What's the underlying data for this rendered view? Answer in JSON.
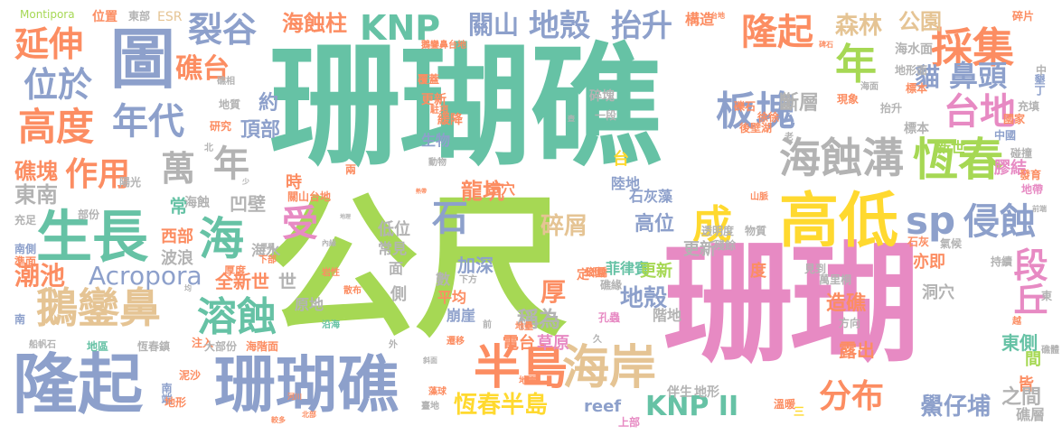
{
  "palette": {
    "green": "#66c2a5",
    "orange": "#fc8d62",
    "blue": "#8da0cb",
    "pink": "#e78ac3",
    "lime": "#a6d854",
    "yellow": "#ffd92f",
    "tan": "#e5c494",
    "gray": "#b3b3b3"
  },
  "words": [
    {
      "text": "珊瑚礁",
      "color": "#66c2a5"
    },
    {
      "text": "公尺",
      "color": "#a6d854"
    },
    {
      "text": "珊瑚",
      "color": "#e78ac3"
    },
    {
      "text": "隆起",
      "color": "#8da0cb"
    },
    {
      "text": "珊瑚礁",
      "color": "#8da0cb"
    },
    {
      "text": "圖",
      "color": "#8da0cb"
    },
    {
      "text": "生長",
      "color": "#66c2a5"
    },
    {
      "text": "高低",
      "color": "#ffd92f"
    },
    {
      "text": "海蝕溝",
      "color": "#b3b3b3"
    },
    {
      "text": "半島",
      "color": "#fc8d62"
    },
    {
      "text": "海岸",
      "color": "#e5c494"
    },
    {
      "text": "鵝鑾鼻",
      "color": "#e5c494"
    },
    {
      "text": "溶蝕",
      "color": "#66c2a5"
    },
    {
      "text": "高度",
      "color": "#fc8d62"
    },
    {
      "text": "年代",
      "color": "#8da0cb"
    },
    {
      "text": "延伸",
      "color": "#fc8d62"
    },
    {
      "text": "位於",
      "color": "#8da0cb"
    },
    {
      "text": "裂谷",
      "color": "#8da0cb"
    },
    {
      "text": "KNP",
      "color": "#66c2a5"
    },
    {
      "text": "地殼",
      "color": "#8da0cb"
    },
    {
      "text": "抬升",
      "color": "#8da0cb"
    },
    {
      "text": "隆起",
      "color": "#fc8d62"
    },
    {
      "text": "採集",
      "color": "#fc8d62"
    },
    {
      "text": "年",
      "color": "#a6d854"
    },
    {
      "text": "板塊",
      "color": "#8da0cb"
    },
    {
      "text": "台地",
      "color": "#e78ac3"
    },
    {
      "text": "恆春",
      "color": "#a6d854"
    },
    {
      "text": "sp",
      "color": "#8da0cb"
    },
    {
      "text": "侵蝕",
      "color": "#8da0cb"
    },
    {
      "text": "段丘",
      "color": "#e78ac3"
    },
    {
      "text": "礁台",
      "color": "#fc8d62"
    },
    {
      "text": "作用",
      "color": "#fc8d62"
    },
    {
      "text": "萬",
      "color": "#b3b3b3"
    },
    {
      "text": "年",
      "color": "#b3b3b3"
    },
    {
      "text": "海",
      "color": "#66c2a5"
    },
    {
      "text": "成",
      "color": "#ffd92f"
    },
    {
      "text": "受",
      "color": "#e78ac3"
    },
    {
      "text": "石",
      "color": "#8da0cb"
    },
    {
      "text": "分布",
      "color": "#fc8d62"
    },
    {
      "text": "KNP II",
      "color": "#66c2a5"
    },
    {
      "text": "恆春半島",
      "color": "#ffd92f"
    },
    {
      "text": "鱟仔埔",
      "color": "#8da0cb"
    },
    {
      "text": "Acropora",
      "color": "#8da0cb"
    },
    {
      "text": "潮池",
      "color": "#fc8d62"
    },
    {
      "text": "礁塊",
      "color": "#fc8d62"
    },
    {
      "text": "東南",
      "color": "#b3b3b3"
    },
    {
      "text": "海蝕柱",
      "color": "#fc8d62"
    },
    {
      "text": "關山",
      "color": "#8da0cb"
    },
    {
      "text": "森林",
      "color": "#e5c494"
    },
    {
      "text": "公園",
      "color": "#e5c494"
    },
    {
      "text": "貓",
      "color": "#8da0cb"
    },
    {
      "text": "鼻頭",
      "color": "#8da0cb"
    },
    {
      "text": "斷層",
      "color": "#b3b3b3"
    },
    {
      "text": "頂部",
      "color": "#8da0cb"
    },
    {
      "text": "約",
      "color": "#8da0cb"
    },
    {
      "text": "碎屑",
      "color": "#e5c494"
    },
    {
      "text": "高位",
      "color": "#8da0cb"
    },
    {
      "text": "地殼",
      "color": "#8da0cb"
    },
    {
      "text": "厚",
      "color": "#fc8d62"
    },
    {
      "text": "稱為",
      "color": "#b3b3b3"
    },
    {
      "text": "龍坑",
      "color": "#fc8d62"
    },
    {
      "text": "石灰藻",
      "color": "#8da0cb"
    },
    {
      "text": "菲律賓",
      "color": "#66c2a5"
    },
    {
      "text": "全新世",
      "color": "#fc8d62"
    },
    {
      "text": "凹壁",
      "color": "#b3b3b3"
    },
    {
      "text": "常",
      "color": "#66c2a5"
    },
    {
      "text": "加深",
      "color": "#8da0cb"
    },
    {
      "text": "西部",
      "color": "#fc8d62"
    },
    {
      "text": "波浪",
      "color": "#b3b3b3"
    },
    {
      "text": "造礁",
      "color": "#fc8d62"
    },
    {
      "text": "露出",
      "color": "#fc8d62"
    },
    {
      "text": "東側",
      "color": "#66c2a5"
    },
    {
      "text": "皆",
      "color": "#fc8d62"
    },
    {
      "text": "礁層",
      "color": "#b3b3b3"
    },
    {
      "text": "之間",
      "color": "#b3b3b3"
    },
    {
      "text": "間",
      "color": "#a6d854"
    },
    {
      "text": "膠結",
      "color": "#e78ac3"
    },
    {
      "text": "新世",
      "color": "#a6d854"
    },
    {
      "text": "亦即",
      "color": "#fc8d62"
    },
    {
      "text": "洞穴",
      "color": "#b3b3b3"
    },
    {
      "text": "更新",
      "color": "#a6d854"
    },
    {
      "text": "度",
      "color": "#fc8d62"
    },
    {
      "text": "草原",
      "color": "#e78ac3"
    },
    {
      "text": "電台",
      "color": "#fc8d62"
    },
    {
      "text": "階地",
      "color": "#b3b3b3"
    },
    {
      "text": "崩崖",
      "color": "#8da0cb"
    },
    {
      "text": "平均",
      "color": "#fc8d62"
    },
    {
      "text": "原地",
      "color": "#b3b3b3"
    },
    {
      "text": "低位",
      "color": "#b3b3b3"
    },
    {
      "text": "常見",
      "color": "#b3b3b3"
    },
    {
      "text": "陸地",
      "color": "#8da0cb"
    },
    {
      "text": "碎塊",
      "color": "#b3b3b3"
    },
    {
      "text": "生物",
      "color": "#8da0cb"
    },
    {
      "text": "緩降",
      "color": "#fc8d62"
    },
    {
      "text": "更新",
      "color": "#fc8d62"
    },
    {
      "text": "壺穴",
      "color": "#fc8d62"
    },
    {
      "text": "一段",
      "color": "#b3b3b3"
    },
    {
      "text": "構造",
      "color": "#fc8d62"
    },
    {
      "text": "地形面",
      "color": "#b3b3b3"
    },
    {
      "text": "海水面",
      "color": "#b3b3b3"
    },
    {
      "text": "標本",
      "color": "#b3b3b3"
    },
    {
      "text": "標本",
      "color": "#fc8d62"
    },
    {
      "text": "世",
      "color": "#b3b3b3"
    },
    {
      "text": "台",
      "color": "#ffd92f"
    },
    {
      "text": "時",
      "color": "#fc8d62"
    },
    {
      "text": "海水",
      "color": "#b3b3b3"
    },
    {
      "text": "海蝕",
      "color": "#b3b3b3"
    },
    {
      "text": "世",
      "color": "#b3b3b3"
    },
    {
      "text": "側",
      "color": "#b3b3b3"
    },
    {
      "text": "數",
      "color": "#b3b3b3"
    },
    {
      "text": "面",
      "color": "#b3b3b3"
    },
    {
      "text": "定",
      "color": "#fc8d62"
    },
    {
      "text": "更新",
      "color": "#b3b3b3"
    },
    {
      "text": "萬里桐",
      "color": "#b3b3b3"
    },
    {
      "text": "瑯嶠",
      "color": "#fc8d62"
    },
    {
      "text": "方向",
      "color": "#b3b3b3"
    },
    {
      "text": "伴生",
      "color": "#b3b3b3"
    },
    {
      "text": "地形",
      "color": "#b3b3b3"
    },
    {
      "text": "reef",
      "color": "#8da0cb"
    },
    {
      "text": "上部",
      "color": "#e78ac3"
    },
    {
      "text": "溫暖",
      "color": "#fc8d62"
    },
    {
      "text": "三",
      "color": "#ffd92f"
    },
    {
      "text": "公園",
      "color": "#fc8d62"
    },
    {
      "text": "中國",
      "color": "#8da0cb"
    },
    {
      "text": "國家",
      "color": "#fc8d62"
    },
    {
      "text": "發育",
      "color": "#fc8d62"
    },
    {
      "text": "地帶",
      "color": "#e78ac3"
    },
    {
      "text": "碰撞",
      "color": "#b3b3b3"
    },
    {
      "text": "充填",
      "color": "#b3b3b3"
    },
    {
      "text": "墾丁",
      "color": "#8da0cb"
    },
    {
      "text": "中",
      "color": "#b3b3b3"
    },
    {
      "text": "碎片",
      "color": "#fc8d62"
    },
    {
      "text": "地區",
      "color": "#66c2a5"
    },
    {
      "text": "恆春鎮",
      "color": "#b3b3b3"
    },
    {
      "text": "注入",
      "color": "#fc8d62"
    },
    {
      "text": "大部份",
      "color": "#b3b3b3"
    },
    {
      "text": "海階面",
      "color": "#fc8d62"
    },
    {
      "text": "地壘",
      "color": "#fc8d62"
    },
    {
      "text": "下方",
      "color": "#b3b3b3"
    },
    {
      "text": "遷移",
      "color": "#fc8d62"
    },
    {
      "text": "礁緣",
      "color": "#b3b3b3"
    },
    {
      "text": "孔蟲",
      "color": "#e78ac3"
    },
    {
      "text": "沿海",
      "color": "#66c2a5"
    },
    {
      "text": "散布",
      "color": "#fc8d62"
    },
    {
      "text": "岩性",
      "color": "#fc8d62"
    },
    {
      "text": "南端",
      "color": "#8da0cb"
    },
    {
      "text": "泥沙",
      "color": "#fc8d62"
    },
    {
      "text": "地形",
      "color": "#fc8d62"
    },
    {
      "text": "南側",
      "color": "#8da0cb"
    },
    {
      "text": "準面",
      "color": "#fc8d62"
    },
    {
      "text": "充足",
      "color": "#b3b3b3"
    },
    {
      "text": "部份",
      "color": "#b3b3b3"
    },
    {
      "text": "陽光",
      "color": "#b3b3b3"
    },
    {
      "text": "研究",
      "color": "#fc8d62"
    },
    {
      "text": "地質",
      "color": "#b3b3b3"
    },
    {
      "text": "礁相",
      "color": "#b3b3b3"
    },
    {
      "text": "覆蓋",
      "color": "#fc8d62"
    },
    {
      "text": "駐項",
      "color": "#fc8d62"
    },
    {
      "text": "動物",
      "color": "#b3b3b3"
    },
    {
      "text": "兩",
      "color": "#fc8d62"
    },
    {
      "text": "北",
      "color": "#b3b3b3"
    },
    {
      "text": "關山台地",
      "color": "#fc8d62"
    },
    {
      "text": "厚度",
      "color": "#fc8d62"
    },
    {
      "text": "下部",
      "color": "#fc8d62"
    },
    {
      "text": "透明度",
      "color": "#b3b3b3"
    },
    {
      "text": "殘餘",
      "color": "#b3b3b3"
    },
    {
      "text": "山脈",
      "color": "#fc8d62"
    },
    {
      "text": "物質",
      "color": "#b3b3b3"
    },
    {
      "text": "氣候",
      "color": "#b3b3b3"
    },
    {
      "text": "持續",
      "color": "#b3b3b3"
    },
    {
      "text": "見到",
      "color": "#b3b3b3"
    },
    {
      "text": "石灰",
      "color": "#fc8d62"
    },
    {
      "text": "現象",
      "color": "#fc8d62"
    },
    {
      "text": "海面",
      "color": "#b3b3b3"
    },
    {
      "text": "抬升",
      "color": "#b3b3b3"
    },
    {
      "text": "礫石",
      "color": "#fc8d62"
    },
    {
      "text": "後壁湖",
      "color": "#fc8d62"
    },
    {
      "text": "徐徐",
      "color": "#fc8d62"
    },
    {
      "text": "Montipora",
      "color": "#a6d854"
    },
    {
      "text": "位置",
      "color": "#fc8d62"
    },
    {
      "text": "東部",
      "color": "#b3b3b3"
    },
    {
      "text": "ESR",
      "color": "#e5c494"
    },
    {
      "text": "鵝鑾鼻台地",
      "color": "#fc8d62"
    },
    {
      "text": "東",
      "color": "#b3b3b3"
    },
    {
      "text": "南",
      "color": "#8da0cb"
    },
    {
      "text": "船帆石",
      "color": "#b3b3b3"
    },
    {
      "text": "藻球",
      "color": "#fc8d62"
    },
    {
      "text": "臺地",
      "color": "#b3b3b3"
    },
    {
      "text": "斜面",
      "color": "#b3b3b3"
    },
    {
      "text": "地震",
      "color": "#fc8d62"
    },
    {
      "text": "久",
      "color": "#b3b3b3"
    },
    {
      "text": "外",
      "color": "#b3b3b3"
    },
    {
      "text": "前",
      "color": "#b3b3b3"
    },
    {
      "text": "礁體",
      "color": "#b3b3b3"
    },
    {
      "text": "越",
      "color": "#fc8d62"
    },
    {
      "text": "老",
      "color": "#b3b3b3"
    },
    {
      "text": "少",
      "color": "#b3b3b3"
    },
    {
      "text": "均",
      "color": "#b3b3b3"
    },
    {
      "text": "內緣",
      "color": "#b3b3b3"
    },
    {
      "text": "厚層",
      "color": "#b3b3b3"
    },
    {
      "text": "地理",
      "color": "#b3b3b3"
    },
    {
      "text": "熱帶",
      "color": "#fc8d62"
    },
    {
      "text": "河川",
      "color": "#fc8d62"
    },
    {
      "text": "較多",
      "color": "#fc8d62"
    },
    {
      "text": "北部",
      "color": "#fc8d62"
    },
    {
      "text": "壺",
      "color": "#b3b3b3"
    },
    {
      "text": "碑石",
      "color": "#fc8d62"
    },
    {
      "text": "台地",
      "color": "#fc8d62"
    },
    {
      "text": "前端",
      "color": "#b3b3b3"
    }
  ]
}
